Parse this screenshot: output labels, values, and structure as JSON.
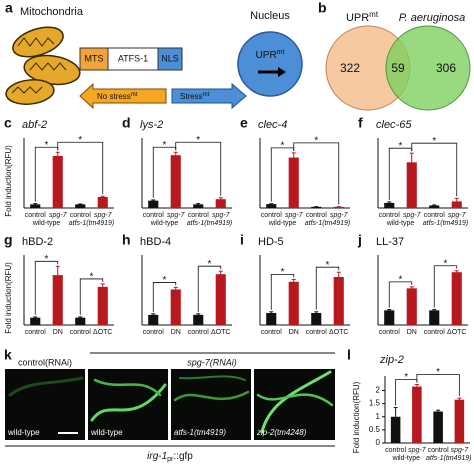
{
  "panel_labels": [
    "a",
    "b",
    "c",
    "d",
    "e",
    "f",
    "g",
    "h",
    "i",
    "j",
    "k",
    "l"
  ],
  "diagram": {
    "mitochondria": "Mitochondria",
    "mts": "MTS",
    "atfs1": "ATFS-1",
    "nls": "NLS",
    "nucleus": "Nucleus",
    "nucleus_text": [
      "UPR",
      "mt"
    ],
    "no_stress": [
      "No stress",
      "mt"
    ],
    "stress": [
      "Stress",
      "mt"
    ]
  },
  "venn": {
    "left_label": [
      "UPR",
      "mt"
    ],
    "right_label": "P. aeruginosa",
    "left_only": 322,
    "overlap": 59,
    "right_only": 306
  },
  "chart_data": [
    {
      "type": "bar",
      "title": "abf-2",
      "ylabel": "Fold induction(RFU)",
      "categories": [
        "control",
        "spg-7",
        "control",
        "spg-7"
      ],
      "groups": [
        "wild-type",
        "atfs-1(tm4919)"
      ],
      "values": [
        1,
        14.2,
        1,
        3
      ],
      "errors": [
        0.2,
        1,
        0.1,
        0.2
      ],
      "colors": [
        "#111111",
        "#b8191e",
        "#111111",
        "#b8191e"
      ],
      "ylim": [
        0,
        18
      ],
      "significance": [
        "*",
        "*"
      ]
    },
    {
      "type": "bar",
      "title": "lys-2",
      "categories": [
        "control",
        "spg-7",
        "control",
        "spg-7"
      ],
      "groups": [
        "wild-type",
        "atfs-1(tm4919)"
      ],
      "values": [
        1,
        7.2,
        0.5,
        1.2
      ],
      "errors": [
        0.1,
        0.4,
        0.1,
        0.2
      ],
      "colors": [
        "#111111",
        "#b8191e",
        "#111111",
        "#b8191e"
      ],
      "ylim": [
        0,
        9
      ],
      "significance": [
        "*",
        "*"
      ]
    },
    {
      "type": "bar",
      "title": "clec-4",
      "categories": [
        "control",
        "spg-7",
        "control",
        "spg-7"
      ],
      "groups": [
        "wild-type",
        "atfs-1(tm4919)"
      ],
      "values": [
        1,
        13,
        0.3,
        0.3
      ],
      "errors": [
        0.1,
        1.2,
        0.05,
        0.05
      ],
      "colors": [
        "#111111",
        "#b8191e",
        "#111111",
        "#b8191e"
      ],
      "ylim": [
        0,
        17
      ],
      "significance": [
        "*",
        "*"
      ]
    },
    {
      "type": "bar",
      "title": "clec-65",
      "categories": [
        "control",
        "spg-7",
        "control",
        "spg-7"
      ],
      "groups": [
        "wild-type",
        "atfs-1(tm4919)"
      ],
      "values": [
        1,
        9,
        0.5,
        1.3
      ],
      "errors": [
        0.2,
        1.8,
        0.1,
        0.6
      ],
      "colors": [
        "#111111",
        "#b8191e",
        "#111111",
        "#b8191e"
      ],
      "ylim": [
        0,
        13
      ],
      "significance": [
        "*",
        "*"
      ]
    },
    {
      "type": "bar",
      "title": "hBD-2",
      "ylabel": "Fold induction(RFU)",
      "categories": [
        "control",
        "DN",
        "control",
        "ΔOTC"
      ],
      "values": [
        1,
        6.8,
        1,
        5.2
      ],
      "errors": [
        0.1,
        1.2,
        0.1,
        0.4
      ],
      "colors": [
        "#111111",
        "#b8191e",
        "#111111",
        "#b8191e"
      ],
      "ylim": [
        0,
        9
      ],
      "significance": [
        "*",
        "*"
      ]
    },
    {
      "type": "bar",
      "title": "hBD-4",
      "categories": [
        "control",
        "DN",
        "control",
        "ΔOTC"
      ],
      "values": [
        1,
        3.5,
        1,
        5
      ],
      "errors": [
        0.1,
        0.2,
        0.1,
        0.3
      ],
      "colors": [
        "#111111",
        "#b8191e",
        "#111111",
        "#b8191e"
      ],
      "ylim": [
        0,
        6.5
      ],
      "significance": [
        "*",
        "*"
      ]
    },
    {
      "type": "bar",
      "title": "HD-5",
      "categories": [
        "control",
        "DN",
        "control",
        "ΔOTC"
      ],
      "values": [
        1,
        3.6,
        1,
        4
      ],
      "errors": [
        0.1,
        0.2,
        0.1,
        0.4
      ],
      "colors": [
        "#111111",
        "#b8191e",
        "#111111",
        "#b8191e"
      ],
      "ylim": [
        0,
        5.5
      ],
      "significance": [
        "*",
        "*"
      ]
    },
    {
      "type": "bar",
      "title": "LL-37",
      "categories": [
        "control",
        "DN",
        "control",
        "ΔOTC"
      ],
      "values": [
        1,
        2.5,
        1,
        3.6
      ],
      "errors": [
        0.05,
        0.1,
        0.05,
        0.1
      ],
      "colors": [
        "#111111",
        "#b8191e",
        "#111111",
        "#b8191e"
      ],
      "ylim": [
        0,
        4.5
      ],
      "significance": [
        "*",
        "*"
      ]
    },
    {
      "type": "bar",
      "title": "zip-2",
      "ylabel": "Fold induction(RFU)",
      "categories": [
        "control",
        "spg-7",
        "control",
        "spg-7"
      ],
      "groups": [
        "wild-type",
        "atfs-1(tm4919)"
      ],
      "values": [
        1,
        2.15,
        1.2,
        1.65
      ],
      "errors": [
        0.35,
        0.08,
        0.05,
        0.06
      ],
      "colors": [
        "#111111",
        "#b8191e",
        "#111111",
        "#b8191e"
      ],
      "ylim": [
        0,
        2.4
      ],
      "yticks": [
        0,
        0.5,
        1,
        1.5,
        2
      ],
      "significance": [
        "*",
        "*"
      ]
    }
  ],
  "images": {
    "header_control": "control(RNAi)",
    "header_treated": "spg-7(RNAi)",
    "labels": [
      "wild-type",
      "wild-type",
      "atfs-1(tm4919)",
      "zip-2(tm4248)"
    ],
    "reporter": [
      "irg-1",
      "pr",
      "::gfp"
    ]
  }
}
